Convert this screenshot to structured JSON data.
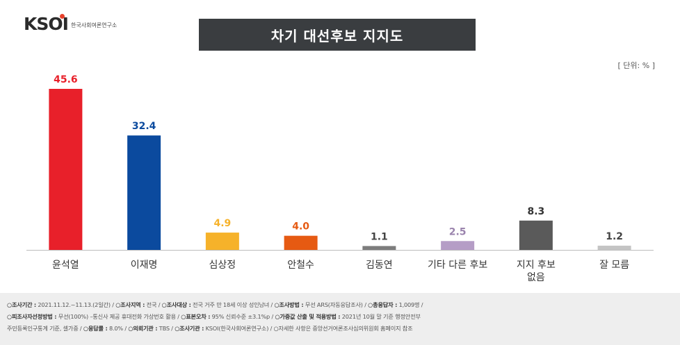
{
  "logo": {
    "text": "KSOI",
    "subtitle": "한국사회여론연구소"
  },
  "title": "차기 대선후보 지지도",
  "unit_label": "[ 단위: % ]",
  "chart_data": {
    "type": "bar",
    "title": "차기 대선후보 지지도",
    "categories": [
      "윤석열",
      "이재명",
      "심상정",
      "안철수",
      "김동연",
      "기타 다른 후보",
      "지지 후보\n없음",
      "잘 모름"
    ],
    "values": [
      45.6,
      32.4,
      4.9,
      4.0,
      1.1,
      2.5,
      8.3,
      1.2
    ],
    "colors": [
      "#e8202a",
      "#0b4a9e",
      "#f6b22a",
      "#e65a12",
      "#7d7d7d",
      "#b59dc6",
      "#5a5a5a",
      "#c4c4c4"
    ],
    "label_colors": [
      "#e8202a",
      "#0b4a9e",
      "#f6b22a",
      "#e65a12",
      "#444444",
      "#9a83ad",
      "#333333",
      "#444444"
    ],
    "ylim": [
      0,
      48
    ],
    "grid": false,
    "legend": "none"
  },
  "footer": {
    "line1": [
      {
        "k": "○조사기간 :",
        "v": " 2021.11.12.~11.13.(2일간)  /  "
      },
      {
        "k": "○조사지역 :",
        "v": " 전국  /  "
      },
      {
        "k": "○조사대상 :",
        "v": " 전국 거주 만 18세 이상 성인남녀  /  "
      },
      {
        "k": "○조사방법 :",
        "v": " 무선 ARS(자동응답조사)  /  "
      },
      {
        "k": "○총응답자 :",
        "v": " 1,009명  /"
      }
    ],
    "line2": [
      {
        "k": "○피조사자선정방법 :",
        "v": " 무선(100%) –통신사 제공 휴대전화 가상번호 활용  /  "
      },
      {
        "k": "○표본오차 :",
        "v": " 95% 신뢰수준 ±3.1%p  /  "
      },
      {
        "k": "○가중값 산출 및 적용방법 :",
        "v": " 2021년 10월 말 기준 행정안전부"
      }
    ],
    "line3": [
      {
        "k": "",
        "v": "주민등록인구통계 기준, 셀가중  /  "
      },
      {
        "k": "○응답률 :",
        "v": " 8.0%  /  "
      },
      {
        "k": "○의뢰기관 :",
        "v": " TBS  /  "
      },
      {
        "k": "○조사기관 :",
        "v": " KSOI(한국사회여론연구소)  /  ○자세한 사항은 중앙선거여론조사심의위원회 홈페이지 참조"
      }
    ]
  }
}
